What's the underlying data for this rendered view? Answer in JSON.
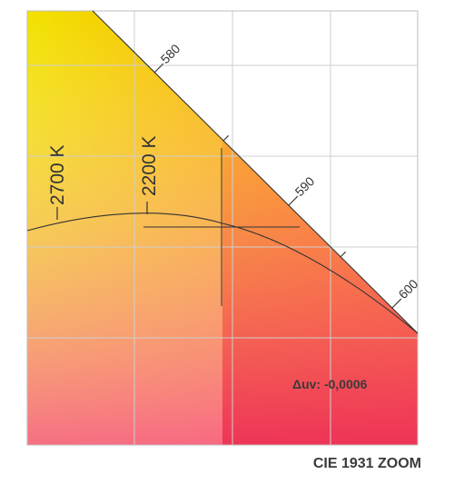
{
  "diagram": {
    "caption": "CIE 1931 ZOOM",
    "delta_uv_label": "Δuv: -0,0006",
    "wavelength_ticks": [
      {
        "label": "580",
        "labeled": true
      },
      {
        "label": "585",
        "labeled": false
      },
      {
        "label": "590",
        "labeled": true
      },
      {
        "label": "595",
        "labeled": false
      },
      {
        "label": "600",
        "labeled": true
      }
    ],
    "isotherms": [
      {
        "label": "2700 K"
      },
      {
        "label": "2200 K"
      }
    ],
    "crosshair": {
      "name": "measured-point"
    },
    "gradient": {
      "top_left": "#f2e200",
      "top_right": "#ff8a00",
      "bottom_left": "#f75c9a",
      "bottom_right": "#e8123a"
    },
    "line_color": "#333333",
    "grid_color": "#cfcfcf"
  }
}
